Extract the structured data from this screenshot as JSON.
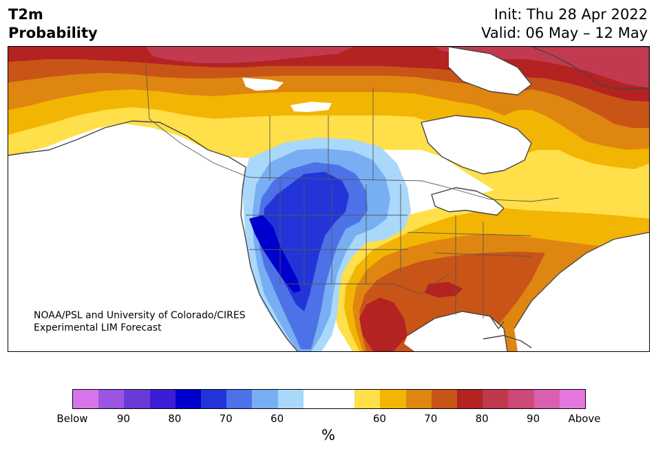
{
  "title": {
    "line1": "T2m",
    "line2": "Probability"
  },
  "header": {
    "init": "Init: Thu 28 Apr 2022",
    "valid": "Valid: 06 May – 12 May"
  },
  "credit": {
    "line1": "NOAA/PSL and University of Colorado/CIRES",
    "line2": "Experimental LIM Forecast"
  },
  "colorbar": {
    "colors": [
      "#d674ea",
      "#9b55e2",
      "#6a3ad8",
      "#3a1ed6",
      "#0000cc",
      "#2335d8",
      "#4d72e8",
      "#78aef2",
      "#a9d8fa",
      "#ffffff",
      "#ffffff",
      "#ffdf4a",
      "#f3b503",
      "#df8610",
      "#c95417",
      "#b42222",
      "#c0384e",
      "#cd497a",
      "#da5fae",
      "#e476dd"
    ],
    "ticks": [
      "Below",
      "90",
      "80",
      "70",
      "60",
      "60",
      "70",
      "80",
      "90",
      "Above"
    ],
    "unit": "%"
  },
  "map_colors": {
    "above_90": "#c23a50",
    "above_80": "#b42222",
    "above_70": "#c95417",
    "above_65": "#df8610",
    "above_60": "#f3b503",
    "above_55": "#ffdf4a",
    "below_55": "#a9d8fa",
    "below_60": "#78aef2",
    "below_65": "#4d72e8",
    "below_70": "#2335d8",
    "below_75": "#0000cc",
    "land_outline": "#444444"
  }
}
